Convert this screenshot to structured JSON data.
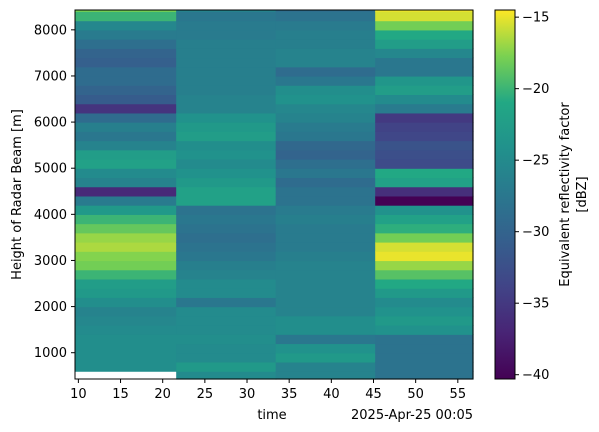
{
  "chart_data": {
    "type": "heatmap",
    "title": "",
    "xlabel": "time",
    "x_offset_label": "2025-Apr-25 00:05",
    "ylabel": "Height of Radar Beam [m]",
    "xlim": [
      9.6,
      56.8
    ],
    "ylim": [
      430,
      8430
    ],
    "x_ticks": [
      10,
      15,
      20,
      25,
      30,
      35,
      40,
      45,
      50,
      55
    ],
    "x_tick_labels": [
      "10",
      "15",
      "20",
      "25",
      "30",
      "35",
      "40",
      "45",
      "50",
      "55"
    ],
    "y_ticks": [
      1000,
      2000,
      3000,
      4000,
      5000,
      6000,
      7000,
      8000
    ],
    "y_tick_labels": [
      "1000",
      "2000",
      "3000",
      "4000",
      "5000",
      "6000",
      "7000",
      "8000"
    ],
    "colormap": "viridis",
    "colorbar": {
      "label_line1": "Equivalent reflectivity factor",
      "label_line2": "[dBZ]",
      "vmin": -40.3,
      "vmax": -14.5,
      "ticks": [
        -40,
        -35,
        -30,
        -25,
        -20,
        -15
      ],
      "tick_labels": [
        "−40",
        "−35",
        "−30",
        "−25",
        "−20",
        "−15"
      ]
    },
    "columns": [
      {
        "x_start": 9.6,
        "x_end": 21.6,
        "y_start": 600,
        "y_step": 200,
        "values": [
          -24.5,
          -24.5,
          -24.5,
          -24.5,
          -25.0,
          -25.5,
          -26.0,
          -24.5,
          -23.0,
          -22.5,
          -20.0,
          -18.0,
          -17.5,
          -16.5,
          -17.0,
          -18.5,
          -20.0,
          -23.0,
          -27.0,
          -36.5,
          -26.0,
          -25.0,
          -22.0,
          -22.5,
          -26.0,
          -27.5,
          -26.5,
          -29.0,
          -35.5,
          -31.0,
          -30.0,
          -29.0,
          -29.0,
          -30.5,
          -30.0,
          -28.5,
          -27.0,
          -25.5,
          -20.0,
          -18.0,
          -15.0
        ]
      },
      {
        "x_start": 21.6,
        "x_end": 33.4,
        "y_start": 400,
        "y_step": 200,
        "values": [
          -25.0,
          -23.0,
          -25.0,
          -25.0,
          -24.5,
          -25.0,
          -25.0,
          -25.0,
          -27.5,
          -25.0,
          -25.0,
          -26.0,
          -26.5,
          -27.5,
          -28.0,
          -28.5,
          -28.0,
          -27.5,
          -28.0,
          -22.0,
          -22.0,
          -23.0,
          -24.0,
          -25.0,
          -24.0,
          -24.5,
          -22.5,
          -23.0,
          -24.0,
          -26.0,
          -26.0,
          -26.5,
          -26.5,
          -26.5,
          -26.5,
          -26.5,
          -26.5,
          -27.0,
          -27.0,
          -27.5,
          -26.0
        ]
      },
      {
        "x_start": 33.4,
        "x_end": 45.2,
        "y_start": 400,
        "y_step": 200,
        "values": [
          -26.0,
          -26.0,
          -23.0,
          -24.0,
          -27.5,
          -24.5,
          -24.5,
          -26.0,
          -26.0,
          -26.0,
          -26.0,
          -26.0,
          -26.0,
          -26.5,
          -27.0,
          -27.0,
          -27.0,
          -26.5,
          -27.0,
          -28.0,
          -28.0,
          -29.0,
          -27.5,
          -28.5,
          -30.0,
          -29.5,
          -27.5,
          -27.0,
          -26.0,
          -25.5,
          -24.0,
          -24.5,
          -27.5,
          -29.0,
          -26.0,
          -26.0,
          -26.5,
          -26.5,
          -27.0,
          -28.0,
          -28.5
        ]
      },
      {
        "x_start": 45.2,
        "x_end": 56.8,
        "y_start": 400,
        "y_step": 200,
        "values": [
          -28.0,
          -28.0,
          -28.0,
          -28.0,
          -28.0,
          -24.0,
          -23.0,
          -24.0,
          -25.0,
          -23.0,
          -21.0,
          -19.0,
          -17.0,
          -15.0,
          -15.5,
          -18.0,
          -20.5,
          -22.0,
          -24.0,
          -41.0,
          -36.0,
          -22.0,
          -21.0,
          -33.0,
          -32.5,
          -32.0,
          -33.5,
          -34.0,
          -35.0,
          -27.0,
          -25.0,
          -22.5,
          -23.5,
          -27.5,
          -27.5,
          -25.5,
          -22.5,
          -21.0,
          -18.0,
          -15.5,
          -15.0
        ]
      }
    ]
  }
}
